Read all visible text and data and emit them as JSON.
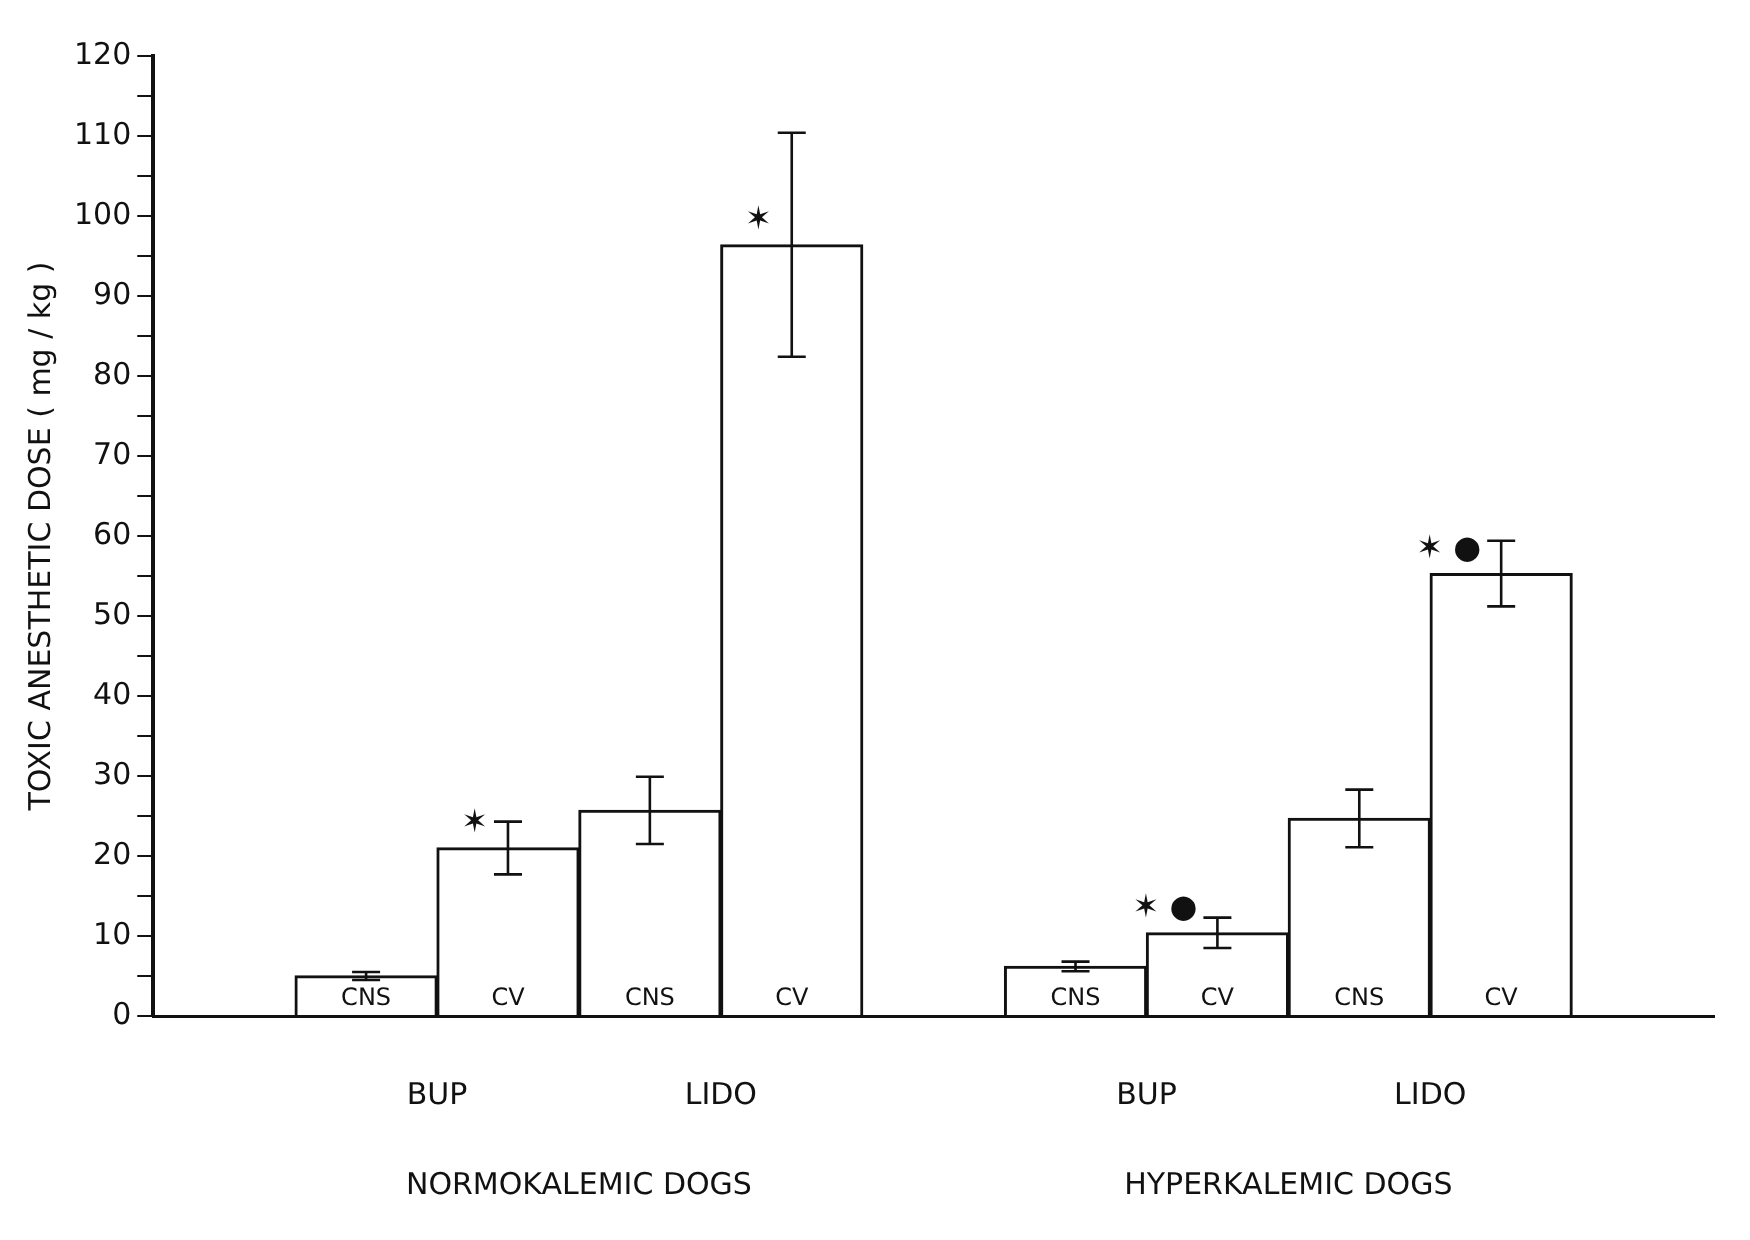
{
  "chart_data": {
    "type": "bar",
    "ylabel": "TOXIC ANESTHETIC DOSE ( mg / kg )",
    "categories": [
      null,
      "CNS",
      "CV",
      "CNS",
      "CV",
      null,
      "CNS",
      "CV",
      "CNS",
      "CV",
      null
    ],
    "values": [
      null,
      5,
      21,
      25.7,
      96.4,
      null,
      6.2,
      10.4,
      24.7,
      55.3,
      null
    ],
    "errors": [
      null,
      0.5,
      3.3,
      4.2,
      14,
      null,
      0.6,
      1.9,
      3.6,
      4.1,
      null
    ],
    "value_labels": [
      null,
      null,
      "✶",
      null,
      "✶",
      null,
      null,
      "✶ ●",
      null,
      "✶ ●",
      null
    ],
    "color": "#ffffff",
    "annotations": [
      "BUP",
      "LIDO",
      "NORMOKALEMIC DOGS",
      "BUP",
      "LIDO",
      "HYPERKALEMIC DOGS"
    ],
    "ylim": [
      0,
      120
    ],
    "yticks": [
      0,
      {
        "value": 5,
        "label": null
      },
      10,
      {
        "value": 15,
        "label": null
      },
      20,
      {
        "value": 25,
        "label": null
      },
      30,
      {
        "value": 35,
        "label": null
      },
      40,
      {
        "value": 45,
        "label": null
      },
      50,
      {
        "value": 55,
        "label": null
      },
      60,
      {
        "value": 65,
        "label": null
      },
      70,
      {
        "value": 75,
        "label": null
      },
      80,
      {
        "value": 85,
        "label": null
      },
      90,
      {
        "value": 95,
        "label": null
      },
      100,
      {
        "value": 105,
        "label": null
      },
      110,
      {
        "value": 115,
        "label": null
      },
      120
    ],
    "grid": false,
    "legend": false
  }
}
